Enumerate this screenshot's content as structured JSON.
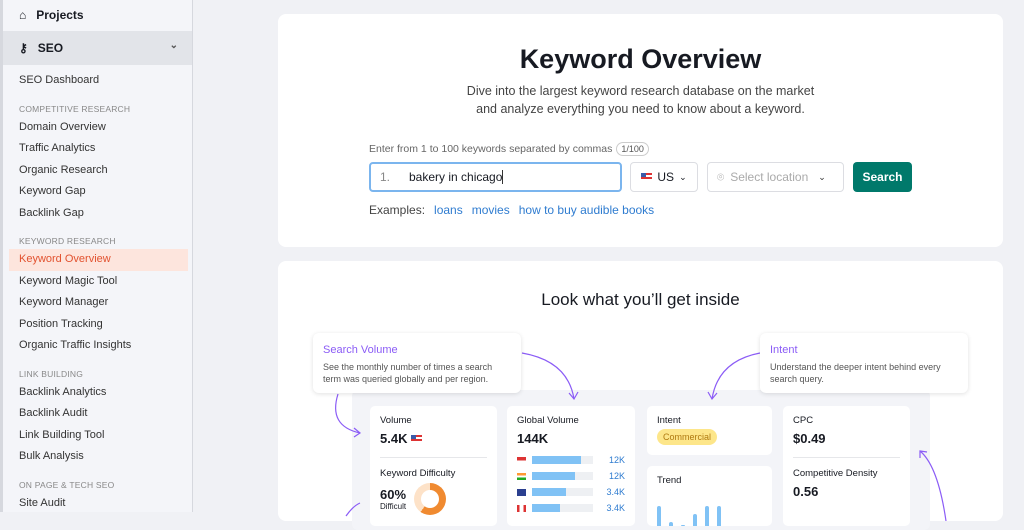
{
  "sidebar": {
    "projects": "Projects",
    "seo": "SEO",
    "dashboard": "SEO Dashboard",
    "sections": [
      {
        "title": "COMPETITIVE RESEARCH",
        "items": [
          "Domain Overview",
          "Traffic Analytics",
          "Organic Research",
          "Keyword Gap",
          "Backlink Gap"
        ]
      },
      {
        "title": "KEYWORD RESEARCH",
        "items": [
          "Keyword Overview",
          "Keyword Magic Tool",
          "Keyword Manager",
          "Position Tracking",
          "Organic Traffic Insights"
        ]
      },
      {
        "title": "LINK BUILDING",
        "items": [
          "Backlink Analytics",
          "Backlink Audit",
          "Link Building Tool",
          "Bulk Analysis"
        ]
      },
      {
        "title": "ON PAGE & TECH SEO",
        "items": [
          "Site Audit"
        ]
      }
    ],
    "active": "Keyword Overview"
  },
  "search": {
    "title": "Keyword Overview",
    "subtitle1": "Dive into the largest keyword research database on the market",
    "subtitle2": "and analyze everything you need to know about a keyword.",
    "hint": "Enter from 1 to 100 keywords separated by commas",
    "count": "1/100",
    "line_num": "1.",
    "value": "bakery in chicago",
    "database": "US",
    "location_placeholder": "Select location",
    "button": "Search",
    "examples_label": "Examples:",
    "examples": [
      "loans",
      "movies",
      "how to buy audible books"
    ]
  },
  "preview": {
    "title": "Look what you’ll get inside",
    "callouts": [
      {
        "title": "Search Volume",
        "text": "See the monthly number of times a search term was queried globally and per region."
      },
      {
        "title": "Intent",
        "text": "Understand the deeper intent behind every search query."
      }
    ],
    "volume": {
      "label": "Volume",
      "value": "5.4K"
    },
    "kd": {
      "label": "Keyword Difficulty",
      "value": "60%",
      "level": "Difficult",
      "percent": 60
    },
    "global": {
      "label": "Global Volume",
      "value": "144K",
      "rows": [
        {
          "country": "US",
          "value": "12K",
          "fill": 0.8
        },
        {
          "country": "IN",
          "value": "12K",
          "fill": 0.7
        },
        {
          "country": "UK",
          "value": "3.4K",
          "fill": 0.55
        },
        {
          "country": "CA",
          "value": "3.4K",
          "fill": 0.45
        }
      ]
    },
    "intent": {
      "label": "Intent",
      "value": "Commercial"
    },
    "trend": {
      "label": "Trend",
      "values": [
        100,
        20,
        5,
        60,
        100,
        100
      ]
    },
    "cpc": {
      "label": "CPC",
      "value": "$0.49"
    },
    "density": {
      "label": "Competitive Density",
      "value": "0.56"
    }
  },
  "colors": {
    "accent": "#00796b",
    "active": "#e2522f",
    "link": "#2f7cd0",
    "callout": "#8b5cf6"
  }
}
